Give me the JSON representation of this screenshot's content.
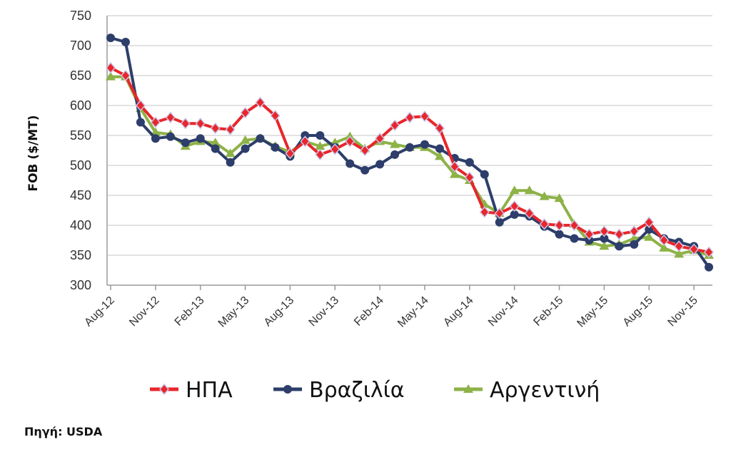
{
  "chart_data": {
    "type": "line",
    "title": "",
    "ylabel": "FOB ($/MT)",
    "xlabel": "",
    "ylim": [
      300,
      750
    ],
    "yticks": [
      300,
      350,
      400,
      450,
      500,
      550,
      600,
      650,
      700,
      750
    ],
    "grid": true,
    "legend_position": "bottom",
    "xtick_labels": [
      "Aug-12",
      "Nov-12",
      "Feb-13",
      "May-13",
      "Aug-13",
      "Nov-13",
      "Feb-14",
      "May-14",
      "Aug-14",
      "Nov-14",
      "Feb-15",
      "May-15",
      "Aug-15",
      "Nov-15"
    ],
    "x": [
      "Aug-12",
      "Sep-12",
      "Oct-12",
      "Nov-12",
      "Dec-12",
      "Jan-13",
      "Feb-13",
      "Mar-13",
      "Apr-13",
      "May-13",
      "Jun-13",
      "Jul-13",
      "Aug-13",
      "Sep-13",
      "Oct-13",
      "Nov-13",
      "Dec-13",
      "Jan-14",
      "Feb-14",
      "Mar-14",
      "Apr-14",
      "May-14",
      "Jun-14",
      "Jul-14",
      "Aug-14",
      "Sep-14",
      "Oct-14",
      "Nov-14",
      "Dec-14",
      "Jan-15",
      "Feb-15",
      "Mar-15",
      "Apr-15",
      "May-15",
      "Jun-15",
      "Jul-15",
      "Aug-15",
      "Sep-15",
      "Oct-15",
      "Nov-15",
      "Dec-15"
    ],
    "series": [
      {
        "name": "ΗΠΑ",
        "color": "#e8262b",
        "marker": "diamond",
        "values": [
          663,
          650,
          600,
          572,
          580,
          570,
          570,
          562,
          560,
          588,
          605,
          583,
          520,
          540,
          518,
          527,
          540,
          525,
          545,
          567,
          580,
          582,
          562,
          498,
          480,
          422,
          420,
          432,
          420,
          402,
          400,
          400,
          385,
          390,
          385,
          390,
          405,
          375,
          365,
          360,
          355
        ]
      },
      {
        "name": "Βραζιλία",
        "color": "#2d3e6a",
        "marker": "circle",
        "values": [
          713,
          706,
          572,
          545,
          548,
          538,
          545,
          528,
          505,
          528,
          545,
          530,
          515,
          550,
          550,
          530,
          503,
          492,
          502,
          518,
          530,
          535,
          528,
          512,
          505,
          485,
          405,
          418,
          415,
          398,
          385,
          378,
          375,
          378,
          365,
          368,
          393,
          378,
          372,
          365,
          330
        ]
      },
      {
        "name": "Αργεντινή",
        "color": "#8db247",
        "marker": "triangle",
        "values": [
          648,
          648,
          595,
          555,
          552,
          532,
          540,
          538,
          520,
          542,
          545,
          532,
          522,
          540,
          532,
          538,
          548,
          528,
          540,
          535,
          530,
          530,
          515,
          485,
          475,
          435,
          420,
          458,
          458,
          448,
          445,
          402,
          372,
          365,
          368,
          378,
          380,
          362,
          352,
          358,
          350
        ]
      }
    ]
  },
  "source_text": "Πηγή: USDA"
}
